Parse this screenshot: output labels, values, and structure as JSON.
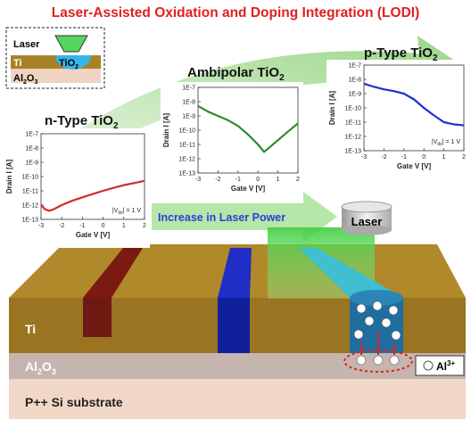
{
  "title": "Laser-Assisted Oxidation and Doping Integration (LODI)",
  "inset": {
    "laser": "Laser",
    "ti": "Ti",
    "tio2": [
      "TiO",
      "2"
    ],
    "al2o3": [
      "Al",
      "2",
      "O",
      "3"
    ]
  },
  "arrow_label": "Increase in Laser Power",
  "laser_source": "Laser",
  "layers": {
    "ti": "Ti",
    "al2o3": [
      "Al",
      "2",
      "O",
      "3"
    ],
    "substrate": "P++ Si substrate"
  },
  "legend": [
    "Al",
    "3+"
  ],
  "chart_data": [
    {
      "type": "line",
      "title": [
        "n-Type TiO",
        "2"
      ],
      "color": "#d42a2a",
      "log_y": true,
      "x": [
        -3,
        -2.8,
        -2.6,
        -2.4,
        -2,
        -1.5,
        -1,
        -0.5,
        0,
        0.5,
        1,
        1.5,
        2
      ],
      "values": [
        1e-12,
        5e-13,
        4e-13,
        5e-13,
        1e-12,
        2e-12,
        3.5e-12,
        6e-12,
        1e-11,
        1.6e-11,
        2.5e-11,
        3.5e-11,
        5e-11
      ],
      "xlim": [
        -3,
        2
      ],
      "xticks": [
        -3,
        -2,
        -1,
        0,
        1,
        2
      ],
      "ylim": [
        1e-13,
        1e-07
      ],
      "yticks": [
        {
          "value": 1e-13,
          "label": "1E-13"
        },
        {
          "value": 1e-12,
          "label": "1E-12"
        },
        {
          "value": 1e-11,
          "label": "1E-11"
        },
        {
          "value": 1e-10,
          "label": "1E-10"
        },
        {
          "value": 1e-09,
          "label": "1E-9"
        },
        {
          "value": 1e-08,
          "label": "1E-8"
        },
        {
          "value": 1e-07,
          "label": "1E-7"
        }
      ],
      "xlabel": "Gate V [V]",
      "ylabel": "Drain I [A]",
      "annotation": [
        "|V",
        "ds",
        "| = 1 V"
      ]
    },
    {
      "type": "line",
      "title": [
        "Ambipolar TiO",
        "2"
      ],
      "color": "#2e8b2e",
      "log_y": true,
      "x": [
        -3,
        -2.5,
        -2,
        -1.5,
        -1,
        -0.5,
        0,
        0.3,
        0.5,
        1,
        1.5,
        2
      ],
      "values": [
        5e-09,
        2e-09,
        1e-09,
        5e-10,
        2e-10,
        5e-11,
        1e-11,
        3e-12,
        5e-12,
        2e-11,
        8e-11,
        3e-10
      ],
      "xlim": [
        -3,
        2
      ],
      "xticks": [
        -3,
        -2,
        -1,
        0,
        1,
        2
      ],
      "ylim": [
        1e-13,
        1e-07
      ],
      "yticks": [
        {
          "value": 1e-13,
          "label": "1E-13"
        },
        {
          "value": 1e-12,
          "label": "1E-12"
        },
        {
          "value": 1e-11,
          "label": "1E-11"
        },
        {
          "value": 1e-10,
          "label": "1E-10"
        },
        {
          "value": 1e-09,
          "label": "1E-9"
        },
        {
          "value": 1e-08,
          "label": "1E-8"
        },
        {
          "value": 1e-07,
          "label": "1E-7"
        }
      ],
      "xlabel": "Gate V [V]",
      "ylabel": "Drain I [A]"
    },
    {
      "type": "line",
      "title": [
        "p-Type TiO",
        "2"
      ],
      "color": "#1f2fd6",
      "log_y": true,
      "x": [
        -3,
        -2.5,
        -2,
        -1.5,
        -1,
        -0.5,
        0,
        0.5,
        1,
        1.5,
        2
      ],
      "values": [
        5e-09,
        3e-09,
        2e-09,
        1.5e-09,
        1e-09,
        4e-10,
        1e-10,
        3e-11,
        1e-11,
        7e-12,
        6e-12
      ],
      "xlim": [
        -3,
        2
      ],
      "xticks": [
        -3,
        -2,
        -1,
        0,
        1,
        2
      ],
      "ylim": [
        1e-13,
        1e-07
      ],
      "yticks": [
        {
          "value": 1e-13,
          "label": "1E-13"
        },
        {
          "value": 1e-12,
          "label": "1E-12"
        },
        {
          "value": 1e-11,
          "label": "1E-11"
        },
        {
          "value": 1e-10,
          "label": "1E-10"
        },
        {
          "value": 1e-09,
          "label": "1E-9"
        },
        {
          "value": 1e-08,
          "label": "1E-8"
        },
        {
          "value": 1e-07,
          "label": "1E-7"
        }
      ],
      "xlabel": "Gate V [V]",
      "ylabel": "Drain I [A]",
      "annotation": [
        "|V",
        "ds",
        "| = 1 V"
      ]
    }
  ]
}
